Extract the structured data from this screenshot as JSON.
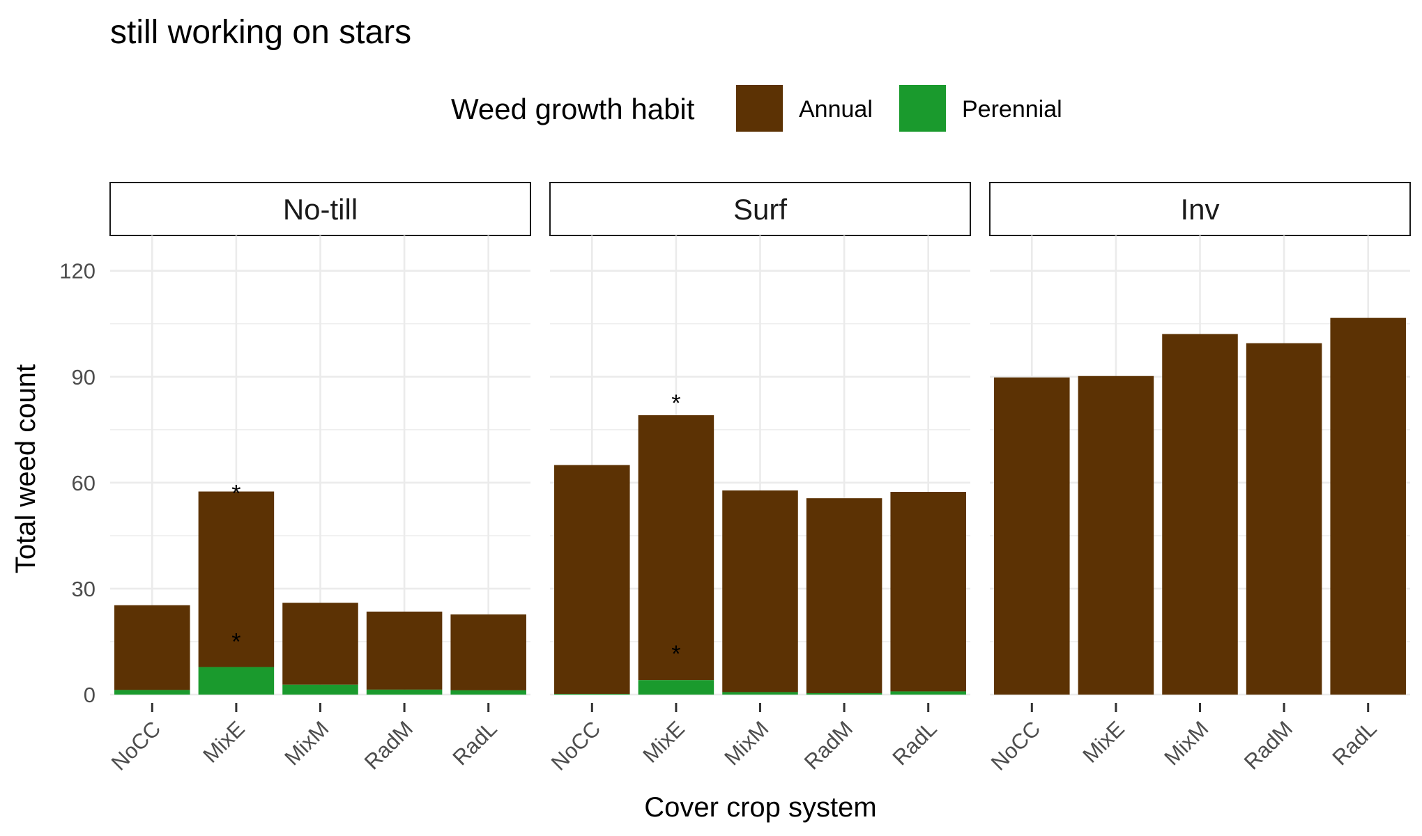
{
  "chart_data": {
    "type": "bar",
    "stacked": true,
    "title": "still working on stars",
    "xlabel": "Cover crop system",
    "ylabel": "Total weed count",
    "ylim": [
      0,
      130
    ],
    "yticks": [
      0,
      30,
      60,
      90,
      120
    ],
    "grid": true,
    "legend": {
      "title": "Weed growth habit",
      "position": "top",
      "entries": [
        {
          "name": "Annual",
          "color": "#5c3204"
        },
        {
          "name": "Perennial",
          "color": "#1a9a2d"
        }
      ]
    },
    "categories": [
      "NoCC",
      "MixE",
      "MixM",
      "RadM",
      "RadL"
    ],
    "panels": [
      {
        "label": "No-till",
        "perennial": [
          1.3,
          7.8,
          2.8,
          1.4,
          1.2
        ],
        "annual": [
          24.0,
          49.7,
          23.2,
          22.1,
          21.5
        ],
        "annotations": [
          {
            "category": "MixE",
            "text": "*",
            "y": 59.5
          },
          {
            "category": "MixE",
            "text": "*",
            "y": 17.5
          }
        ]
      },
      {
        "label": "Surf",
        "perennial": [
          0.2,
          4.1,
          0.7,
          0.4,
          0.9
        ],
        "annual": [
          64.8,
          75.0,
          57.1,
          55.2,
          56.5
        ],
        "annotations": [
          {
            "category": "MixE",
            "text": "*",
            "y": 85.0
          },
          {
            "category": "MixE",
            "text": "*",
            "y": 14.0
          }
        ]
      },
      {
        "label": "Inv",
        "perennial": [
          0,
          0,
          0,
          0,
          0
        ],
        "annual": [
          89.8,
          90.2,
          102.1,
          99.5,
          106.7
        ],
        "annotations": []
      }
    ]
  }
}
